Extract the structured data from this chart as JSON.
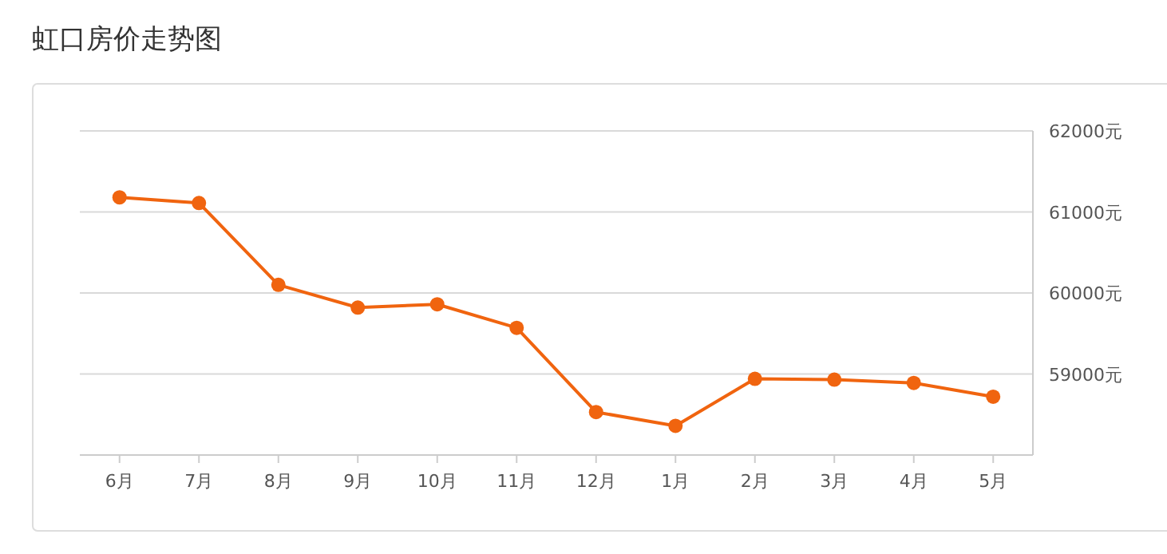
{
  "chart_data": {
    "type": "line",
    "title": "虹口房价走势图",
    "categories": [
      "6月",
      "7月",
      "8月",
      "9月",
      "10月",
      "11月",
      "12月",
      "1月",
      "2月",
      "3月",
      "4月",
      "5月"
    ],
    "series": [
      {
        "color": "#f0640f",
        "values": [
          61180,
          61110,
          60100,
          59820,
          59860,
          59570,
          58530,
          58360,
          58940,
          58930,
          58890,
          58720
        ]
      }
    ],
    "ylim": [
      58000,
      62000
    ],
    "yticks": [
      {
        "value": 58000,
        "label": null
      },
      {
        "value": 59000,
        "label": "59000元"
      },
      {
        "value": 60000,
        "label": "60000元"
      },
      {
        "value": 61000,
        "label": "61000元"
      },
      {
        "value": 62000,
        "label": "62000元"
      }
    ],
    "grid": "y",
    "marker": "circle"
  }
}
